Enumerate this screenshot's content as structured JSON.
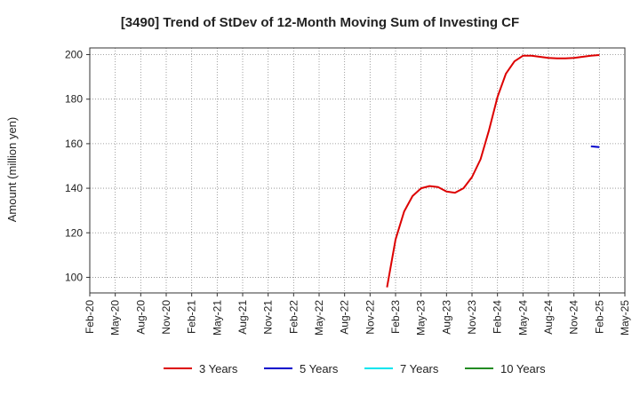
{
  "chart_data": {
    "type": "line",
    "title": "[3490]  Trend of StDev of 12-Month Moving Sum of Investing CF",
    "xlabel": "",
    "ylabel": "Amount (million yen)",
    "ylim": [
      93,
      203
    ],
    "yticks": [
      100,
      120,
      140,
      160,
      180,
      200
    ],
    "x_tick_labels": [
      "Feb-20",
      "May-20",
      "Aug-20",
      "Nov-20",
      "Feb-21",
      "May-21",
      "Aug-21",
      "Nov-21",
      "Feb-22",
      "May-22",
      "Aug-22",
      "Nov-22",
      "Feb-23",
      "May-23",
      "Aug-23",
      "Nov-23",
      "Feb-24",
      "May-24",
      "Aug-24",
      "Nov-24",
      "Feb-25",
      "May-25"
    ],
    "grid": true,
    "legend_position": "bottom",
    "series": [
      {
        "name": "3 Years",
        "color": "#dd0000",
        "points": [
          [
            "Jan-23",
            95.5
          ],
          [
            "Feb-23",
            117
          ],
          [
            "Mar-23",
            129.5
          ],
          [
            "Apr-23",
            136.5
          ],
          [
            "May-23",
            140
          ],
          [
            "Jun-23",
            141
          ],
          [
            "Jul-23",
            140.5
          ],
          [
            "Aug-23",
            138.5
          ],
          [
            "Sep-23",
            138
          ],
          [
            "Oct-23",
            140
          ],
          [
            "Nov-23",
            145
          ],
          [
            "Dec-23",
            153
          ],
          [
            "Jan-24",
            166
          ],
          [
            "Feb-24",
            181
          ],
          [
            "Mar-24",
            191.5
          ],
          [
            "Apr-24",
            197
          ],
          [
            "May-24",
            199.5
          ],
          [
            "Jun-24",
            199.5
          ],
          [
            "Jul-24",
            199
          ],
          [
            "Aug-24",
            198.5
          ],
          [
            "Sep-24",
            198.3
          ],
          [
            "Oct-24",
            198.3
          ],
          [
            "Nov-24",
            198.5
          ],
          [
            "Dec-24",
            199
          ],
          [
            "Jan-25",
            199.5
          ],
          [
            "Feb-25",
            199.8
          ]
        ]
      },
      {
        "name": "5 Years",
        "color": "#0000cc",
        "points": [
          [
            "Jan-25",
            158.8
          ],
          [
            "Feb-25",
            158.5
          ]
        ]
      },
      {
        "name": "7 Years",
        "color": "#00e5ee",
        "points": []
      },
      {
        "name": "10 Years",
        "color": "#228b22",
        "points": []
      }
    ]
  }
}
